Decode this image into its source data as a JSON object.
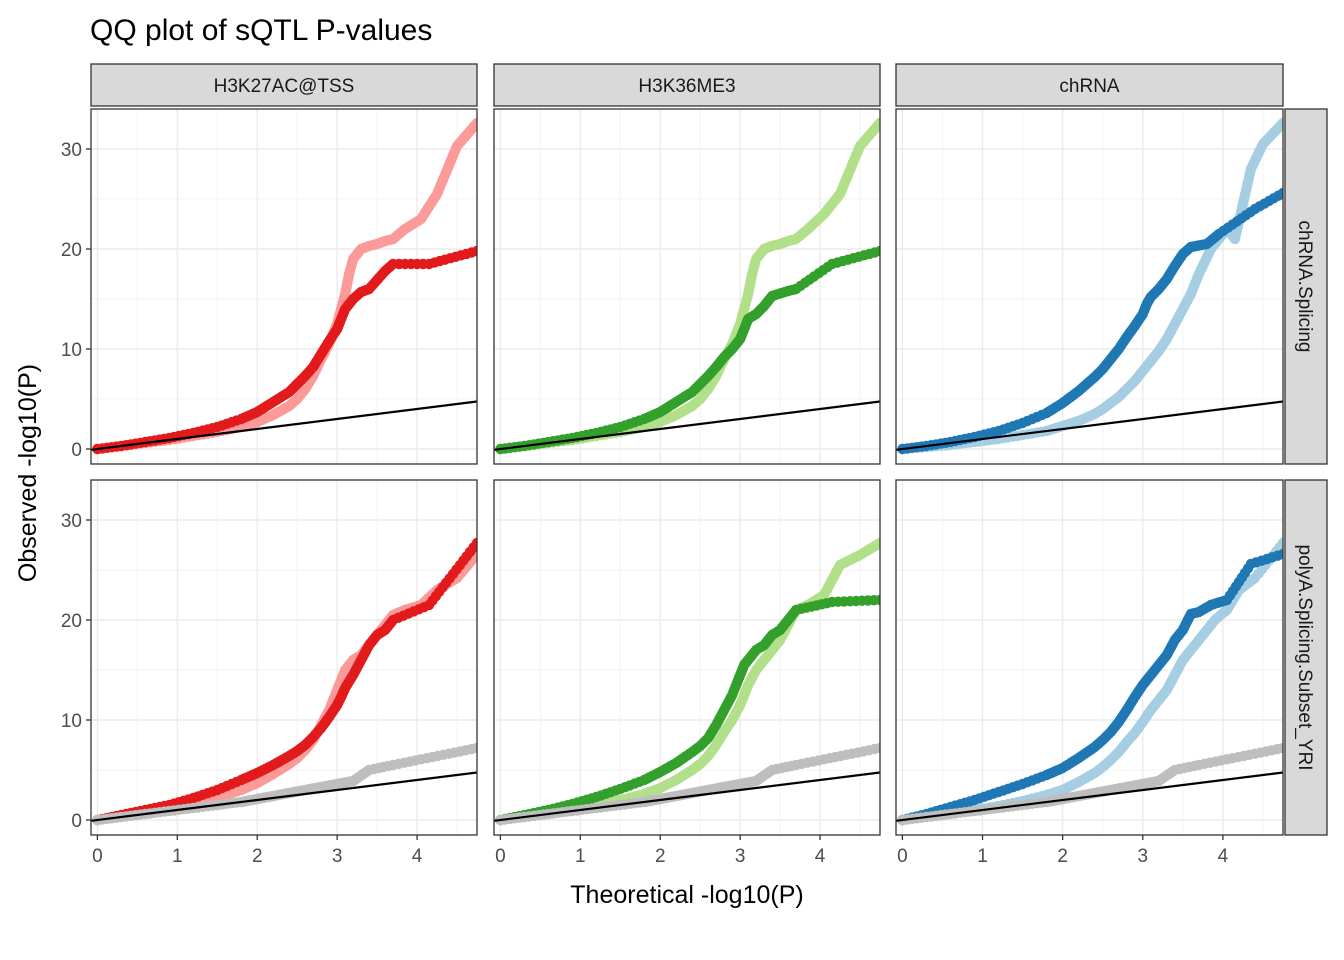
{
  "chart_data": {
    "type": "scatter",
    "title": "QQ plot of sQTL P-values",
    "xlabel": "Theoretical -log10(P)",
    "ylabel": "Observed -log10(P)",
    "xlim": [
      -0.08,
      4.75
    ],
    "ylim": [
      -1.5,
      34
    ],
    "x_ticks": [
      0,
      1,
      2,
      3,
      4
    ],
    "x_tick_labels": [
      "0",
      "1",
      "2",
      "3",
      "4"
    ],
    "y_ticks": [
      0,
      10,
      20,
      30
    ],
    "y_tick_labels": [
      "0",
      "10",
      "20",
      "30"
    ],
    "grid": true,
    "legend": "none",
    "reference_line": {
      "slope": 1,
      "intercept": 0,
      "color": "#000000"
    },
    "col_facets": [
      "H3K27AC@TSS",
      "H3K36ME3",
      "chRNA"
    ],
    "row_facets": [
      "chRNA.Splicing",
      "polyA.Splicing.Subset_YRI"
    ],
    "panels": [
      {
        "row": 0,
        "col": 0,
        "series": [
          {
            "name": "light",
            "color": "#FB9A99",
            "x": [
              0,
              0.3,
              0.6,
              0.9,
              1.2,
              1.5,
              1.8,
              2.0,
              2.2,
              2.4,
              2.5,
              2.6,
              2.7,
              2.8,
              2.9,
              3.0,
              3.05,
              3.1,
              3.15,
              3.2,
              3.3,
              3.4,
              3.5,
              3.6,
              3.7,
              3.85,
              4.05,
              4.25,
              4.5,
              4.75
            ],
            "y": [
              0,
              0.3,
              0.6,
              0.9,
              1.3,
              1.7,
              2.2,
              2.7,
              3.4,
              4.3,
              5.0,
              6.0,
              7.3,
              9.0,
              10.5,
              12.5,
              14.0,
              15.5,
              17.5,
              19.0,
              20.0,
              20.3,
              20.5,
              20.8,
              21.0,
              22.0,
              23.0,
              25.5,
              30.3,
              32.6
            ]
          },
          {
            "name": "dark",
            "color": "#E31A1C",
            "x": [
              0,
              0.3,
              0.6,
              0.9,
              1.2,
              1.5,
              1.8,
              2.0,
              2.2,
              2.4,
              2.5,
              2.6,
              2.7,
              2.8,
              2.9,
              3.0,
              3.05,
              3.1,
              3.2,
              3.3,
              3.4,
              3.6,
              3.7,
              4.15,
              4.75
            ],
            "y": [
              0,
              0.3,
              0.7,
              1.1,
              1.6,
              2.2,
              3.0,
              3.7,
              4.7,
              5.7,
              6.5,
              7.3,
              8.2,
              9.5,
              10.8,
              12.0,
              13.0,
              14.0,
              15.0,
              15.7,
              16.0,
              17.8,
              18.5,
              18.5,
              19.8
            ]
          }
        ]
      },
      {
        "row": 0,
        "col": 1,
        "series": [
          {
            "name": "light",
            "color": "#B2DF8A",
            "x": [
              0,
              0.3,
              0.6,
              0.9,
              1.2,
              1.5,
              1.8,
              2.0,
              2.2,
              2.4,
              2.5,
              2.6,
              2.7,
              2.8,
              2.9,
              3.0,
              3.05,
              3.1,
              3.15,
              3.2,
              3.3,
              3.4,
              3.5,
              3.6,
              3.7,
              3.85,
              4.05,
              4.25,
              4.5,
              4.75
            ],
            "y": [
              0,
              0.3,
              0.6,
              0.9,
              1.3,
              1.7,
              2.2,
              2.7,
              3.4,
              4.3,
              5.0,
              6.0,
              7.3,
              9.0,
              10.5,
              12.5,
              14.0,
              15.5,
              17.5,
              19.0,
              20.0,
              20.3,
              20.5,
              20.8,
              21.0,
              22.0,
              23.5,
              25.5,
              30.3,
              32.6
            ]
          },
          {
            "name": "dark",
            "color": "#33A02C",
            "x": [
              0,
              0.3,
              0.6,
              0.9,
              1.2,
              1.5,
              1.8,
              2.0,
              2.2,
              2.4,
              2.5,
              2.6,
              2.7,
              2.8,
              2.9,
              3.0,
              3.05,
              3.1,
              3.2,
              3.3,
              3.4,
              3.6,
              3.7,
              4.15,
              4.75
            ],
            "y": [
              0,
              0.3,
              0.7,
              1.1,
              1.6,
              2.2,
              3.0,
              3.7,
              4.7,
              5.7,
              6.5,
              7.3,
              8.2,
              9.2,
              10.0,
              11.0,
              12.0,
              13.0,
              13.5,
              14.3,
              15.3,
              15.8,
              16.0,
              18.5,
              19.8
            ]
          }
        ]
      },
      {
        "row": 0,
        "col": 2,
        "series": [
          {
            "name": "light",
            "color": "#A6CEE3",
            "x": [
              0,
              0.3,
              0.6,
              0.9,
              1.2,
              1.5,
              1.8,
              2.0,
              2.2,
              2.4,
              2.5,
              2.6,
              2.7,
              2.8,
              2.9,
              3.0,
              3.1,
              3.2,
              3.3,
              3.4,
              3.5,
              3.6,
              3.7,
              3.85,
              4.05,
              4.15,
              4.35,
              4.5,
              4.75
            ],
            "y": [
              0,
              0.2,
              0.4,
              0.7,
              1.0,
              1.4,
              1.8,
              2.3,
              2.8,
              3.5,
              4.0,
              4.6,
              5.2,
              6.0,
              6.8,
              7.8,
              8.8,
              9.8,
              11.0,
              12.5,
              14.0,
              15.5,
              17.5,
              20.0,
              22.0,
              21.0,
              28.0,
              30.5,
              32.6
            ]
          },
          {
            "name": "dark",
            "color": "#1F78B4",
            "x": [
              0,
              0.3,
              0.6,
              0.9,
              1.2,
              1.5,
              1.8,
              2.0,
              2.2,
              2.4,
              2.5,
              2.6,
              2.7,
              2.8,
              2.9,
              3.0,
              3.05,
              3.1,
              3.2,
              3.3,
              3.4,
              3.5,
              3.6,
              3.8,
              3.95,
              4.4,
              4.75
            ],
            "y": [
              0,
              0.3,
              0.7,
              1.2,
              1.8,
              2.6,
              3.6,
              4.6,
              5.8,
              7.2,
              8.0,
              9.0,
              10.0,
              11.2,
              12.3,
              13.5,
              14.5,
              15.2,
              16.0,
              17.0,
              18.3,
              19.5,
              20.2,
              20.5,
              21.5,
              24.0,
              25.6
            ]
          }
        ]
      },
      {
        "row": 1,
        "col": 0,
        "series": [
          {
            "name": "light",
            "color": "#FB9A99",
            "x": [
              0,
              0.3,
              0.6,
              0.9,
              1.2,
              1.5,
              1.8,
              2.0,
              2.2,
              2.4,
              2.5,
              2.6,
              2.7,
              2.8,
              2.9,
              3.0,
              3.05,
              3.1,
              3.2,
              3.3,
              3.4,
              3.5,
              3.6,
              3.7,
              3.85,
              4.05,
              4.25,
              4.5,
              4.75
            ],
            "y": [
              0,
              0.3,
              0.7,
              1.1,
              1.6,
              2.2,
              3.0,
              3.7,
              4.6,
              5.6,
              6.2,
              7.0,
              8.0,
              9.5,
              11.0,
              13.0,
              14.0,
              15.0,
              16.0,
              16.5,
              17.5,
              18.5,
              19.5,
              20.5,
              21.0,
              21.5,
              23.0,
              24.2,
              26.6
            ]
          },
          {
            "name": "dark",
            "color": "#E31A1C",
            "x": [
              0,
              0.3,
              0.6,
              0.9,
              1.2,
              1.5,
              1.8,
              2.0,
              2.2,
              2.4,
              2.5,
              2.6,
              2.7,
              2.8,
              2.9,
              3.0,
              3.05,
              3.1,
              3.2,
              3.3,
              3.4,
              3.5,
              3.6,
              3.7,
              4.15,
              4.75
            ],
            "y": [
              0,
              0.5,
              1.0,
              1.5,
              2.2,
              3.0,
              4.0,
              4.7,
              5.5,
              6.4,
              6.9,
              7.5,
              8.3,
              9.2,
              10.3,
              11.5,
              12.3,
              13.2,
              14.5,
              16.0,
              17.5,
              18.5,
              19.0,
              20.0,
              21.5,
              27.7
            ]
          },
          {
            "name": "null",
            "color": "#BEBEBE",
            "x": [
              0,
              0.3,
              0.6,
              0.9,
              1.2,
              1.5,
              1.8,
              2.0,
              2.2,
              2.4,
              2.6,
              2.8,
              3.0,
              3.2,
              3.4,
              3.7,
              4.75
            ],
            "y": [
              0,
              0.3,
              0.6,
              0.9,
              1.2,
              1.5,
              1.8,
              2.1,
              2.4,
              2.7,
              3.0,
              3.3,
              3.6,
              3.9,
              5.0,
              5.5,
              7.2
            ]
          }
        ]
      },
      {
        "row": 1,
        "col": 1,
        "series": [
          {
            "name": "light",
            "color": "#B2DF8A",
            "x": [
              0,
              0.3,
              0.6,
              0.9,
              1.2,
              1.5,
              1.8,
              2.0,
              2.2,
              2.4,
              2.5,
              2.6,
              2.7,
              2.8,
              2.9,
              3.0,
              3.05,
              3.1,
              3.2,
              3.3,
              3.4,
              3.5,
              3.6,
              3.7,
              3.85,
              4.05,
              4.25,
              4.5,
              4.75
            ],
            "y": [
              0,
              0.3,
              0.6,
              1.0,
              1.4,
              2.0,
              2.6,
              3.2,
              4.0,
              5.0,
              5.6,
              6.4,
              7.5,
              8.8,
              10.0,
              11.5,
              12.5,
              13.5,
              15.0,
              16.0,
              17.0,
              18.0,
              19.5,
              21.0,
              21.5,
              22.5,
              25.5,
              26.5,
              27.7
            ]
          },
          {
            "name": "dark",
            "color": "#33A02C",
            "x": [
              0,
              0.3,
              0.6,
              0.9,
              1.2,
              1.5,
              1.8,
              2.0,
              2.2,
              2.4,
              2.5,
              2.6,
              2.7,
              2.8,
              2.9,
              3.0,
              3.05,
              3.1,
              3.2,
              3.3,
              3.4,
              3.5,
              3.6,
              3.7,
              4.15,
              4.75
            ],
            "y": [
              0,
              0.5,
              1.0,
              1.6,
              2.3,
              3.1,
              4.0,
              4.8,
              5.7,
              6.8,
              7.4,
              8.2,
              9.5,
              11.0,
              12.5,
              14.5,
              15.5,
              16.0,
              17.0,
              17.5,
              18.5,
              19.0,
              20.0,
              21.0,
              21.8,
              22.0
            ]
          },
          {
            "name": "null",
            "color": "#BEBEBE",
            "x": [
              0,
              0.3,
              0.6,
              0.9,
              1.2,
              1.5,
              1.8,
              2.0,
              2.2,
              2.4,
              2.6,
              2.8,
              3.0,
              3.2,
              3.4,
              3.7,
              4.75
            ],
            "y": [
              0,
              0.3,
              0.6,
              0.9,
              1.2,
              1.5,
              1.8,
              2.1,
              2.4,
              2.7,
              3.0,
              3.3,
              3.6,
              3.9,
              5.0,
              5.5,
              7.2
            ]
          }
        ]
      },
      {
        "row": 1,
        "col": 2,
        "series": [
          {
            "name": "light",
            "color": "#A6CEE3",
            "x": [
              0,
              0.3,
              0.6,
              0.9,
              1.2,
              1.5,
              1.8,
              2.0,
              2.2,
              2.4,
              2.5,
              2.6,
              2.7,
              2.8,
              2.9,
              3.0,
              3.1,
              3.2,
              3.3,
              3.4,
              3.5,
              3.6,
              3.7,
              3.9,
              4.05,
              4.2,
              4.4,
              4.75
            ],
            "y": [
              0,
              0.3,
              0.6,
              1.0,
              1.4,
              1.9,
              2.5,
              3.0,
              3.8,
              4.7,
              5.3,
              6.0,
              6.8,
              7.8,
              8.7,
              9.8,
              11.0,
              12.0,
              13.0,
              14.5,
              16.0,
              17.0,
              18.0,
              20.0,
              21.0,
              23.0,
              24.2,
              27.7
            ]
          },
          {
            "name": "dark",
            "color": "#1F78B4",
            "x": [
              0,
              0.3,
              0.6,
              0.9,
              1.2,
              1.5,
              1.8,
              2.0,
              2.2,
              2.4,
              2.5,
              2.6,
              2.7,
              2.8,
              2.9,
              3.0,
              3.1,
              3.2,
              3.3,
              3.4,
              3.5,
              3.6,
              3.7,
              3.85,
              4.05,
              4.35,
              4.75
            ],
            "y": [
              0,
              0.6,
              1.3,
              2.0,
              2.8,
              3.6,
              4.5,
              5.2,
              6.2,
              7.3,
              8.0,
              8.8,
              9.8,
              11.0,
              12.3,
              13.5,
              14.5,
              15.5,
              16.5,
              18.0,
              19.0,
              20.6,
              20.8,
              21.5,
              22.0,
              25.6,
              26.6
            ]
          },
          {
            "name": "null",
            "color": "#BEBEBE",
            "x": [
              0,
              0.3,
              0.6,
              0.9,
              1.2,
              1.5,
              1.8,
              2.0,
              2.2,
              2.4,
              2.6,
              2.8,
              3.0,
              3.2,
              3.4,
              3.7,
              4.75
            ],
            "y": [
              0,
              0.3,
              0.6,
              0.9,
              1.2,
              1.5,
              1.8,
              2.1,
              2.4,
              2.7,
              3.0,
              3.3,
              3.6,
              3.9,
              5.0,
              5.5,
              7.2
            ]
          }
        ]
      }
    ]
  }
}
